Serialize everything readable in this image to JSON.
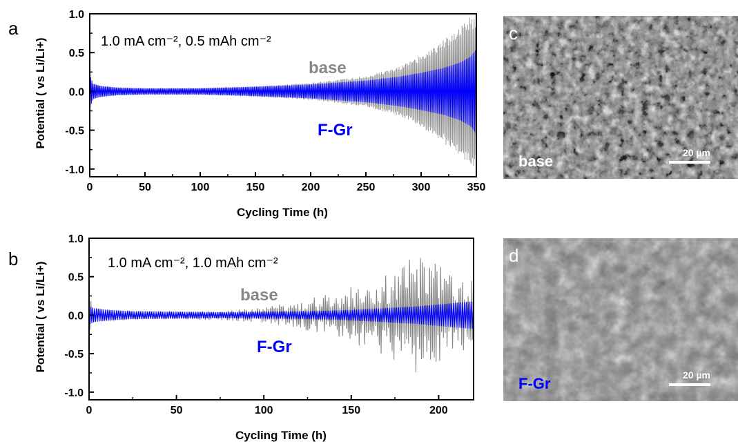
{
  "colors": {
    "base": "#878787",
    "fgr": "#0000ff",
    "axis": "#000000",
    "sem_text": "#ffffff"
  },
  "chart_data": [
    {
      "type": "line",
      "panel": "a",
      "annotation": "1.0 mA cm⁻², 0.5 mAh cm⁻²",
      "xlabel": "Cycling Time (h)",
      "ylabel": "Potential ( vs Li/Li+)",
      "xlim": [
        0,
        350
      ],
      "ylim": [
        -1.1,
        1.0
      ],
      "xticks": [
        "0",
        "50",
        "100",
        "150",
        "200",
        "250",
        "300",
        "350"
      ],
      "yticks": [
        "-1.0",
        "-0.5",
        "0.0",
        "0.5",
        "1.0"
      ],
      "grid": false,
      "series": [
        {
          "name": "base",
          "color": "#878787",
          "x": [
            0,
            3,
            10,
            25,
            50,
            100,
            150,
            200,
            250,
            280,
            300,
            320,
            335,
            345,
            350
          ],
          "envelope": [
            0.22,
            0.1,
            0.07,
            0.05,
            0.04,
            0.045,
            0.07,
            0.11,
            0.2,
            0.32,
            0.46,
            0.66,
            0.85,
            0.97,
            1.0
          ]
        },
        {
          "name": "F-Gr",
          "color": "#0000ff",
          "x": [
            0,
            3,
            10,
            25,
            50,
            100,
            150,
            200,
            250,
            280,
            300,
            320,
            335,
            345,
            350
          ],
          "envelope": [
            0.22,
            0.1,
            0.07,
            0.05,
            0.04,
            0.04,
            0.06,
            0.09,
            0.14,
            0.19,
            0.24,
            0.3,
            0.37,
            0.45,
            0.55
          ]
        }
      ]
    },
    {
      "type": "line",
      "panel": "b",
      "annotation": "1.0 mA cm⁻², 1.0 mAh cm⁻²",
      "xlabel": "Cycling Time (h)",
      "ylabel": "Potential ( vs Li/Li+)",
      "xlim": [
        0,
        220
      ],
      "ylim": [
        -1.1,
        1.0
      ],
      "xticks": [
        "0",
        "50",
        "100",
        "150",
        "200"
      ],
      "yticks": [
        "-1.0",
        "-0.5",
        "0.0",
        "0.5",
        "1.0"
      ],
      "grid": false,
      "series": [
        {
          "name": "base",
          "color": "#878787",
          "x": [
            0,
            3,
            10,
            25,
            50,
            75,
            100,
            120,
            140,
            160,
            175,
            185,
            195,
            205,
            215,
            220
          ],
          "envelope": [
            0.25,
            0.1,
            0.08,
            0.06,
            0.05,
            0.07,
            0.1,
            0.18,
            0.3,
            0.45,
            0.6,
            0.75,
            0.8,
            0.55,
            0.45,
            0.45
          ]
        },
        {
          "name": "F-Gr",
          "color": "#0000ff",
          "x": [
            0,
            3,
            10,
            25,
            50,
            75,
            100,
            120,
            140,
            160,
            175,
            185,
            195,
            205,
            215,
            220
          ],
          "envelope": [
            0.12,
            0.09,
            0.07,
            0.05,
            0.045,
            0.04,
            0.045,
            0.05,
            0.06,
            0.08,
            0.1,
            0.11,
            0.13,
            0.15,
            0.17,
            0.18
          ]
        }
      ]
    }
  ],
  "panels": {
    "a": {
      "letter": "a"
    },
    "b": {
      "letter": "b"
    },
    "c": {
      "letter": "c",
      "sample": "base",
      "scale": "20 µm"
    },
    "d": {
      "letter": "d",
      "sample": "F-Gr",
      "scale": "20 µm"
    }
  }
}
